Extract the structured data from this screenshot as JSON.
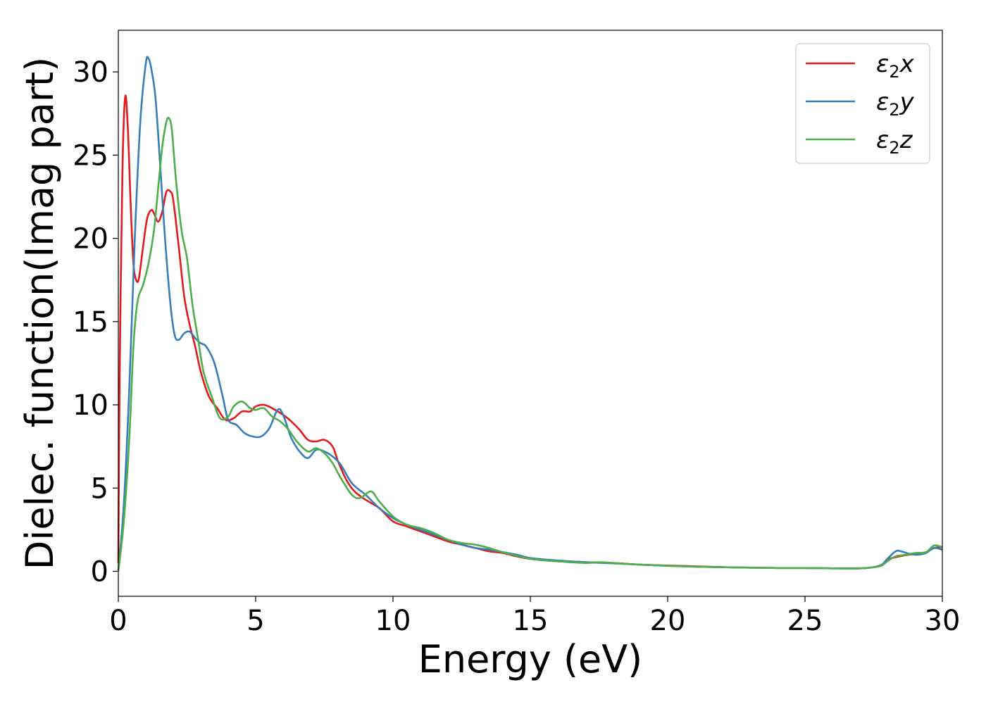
{
  "chart_data": {
    "type": "line",
    "title": "",
    "xlabel": "Energy (eV)",
    "ylabel": "Dielec. function(Imag part)",
    "xlim": [
      0,
      30
    ],
    "ylim": [
      -1.5,
      32.5
    ],
    "xticks": [
      0,
      5,
      10,
      15,
      20,
      25,
      30
    ],
    "yticks": [
      0,
      5,
      10,
      15,
      20,
      25,
      30
    ],
    "grid": false,
    "legend_position": "top-right",
    "series": [
      {
        "name": "ε2x",
        "legend": {
          "base": "ε",
          "sub": "2",
          "suffix": "x"
        },
        "color": "#e41a1c",
        "x": [
          0,
          0.05,
          0.15,
          0.25,
          0.35,
          0.45,
          0.55,
          0.65,
          0.75,
          0.9,
          1.05,
          1.2,
          1.3,
          1.45,
          1.6,
          1.75,
          1.9,
          2.0,
          2.2,
          2.4,
          2.6,
          2.8,
          3.0,
          3.3,
          3.6,
          3.9,
          4.2,
          4.5,
          4.8,
          5.0,
          5.3,
          5.6,
          6.0,
          6.3,
          6.6,
          6.9,
          7.2,
          7.5,
          7.8,
          8.0,
          8.3,
          8.6,
          9.0,
          9.5,
          10.0,
          10.5,
          11.0,
          11.5,
          12.0,
          12.5,
          13.0,
          13.5,
          14.0,
          14.5,
          15.0,
          16.0,
          17.0,
          18.0,
          19.0,
          20.0,
          21.0,
          22.0,
          23.0,
          24.0,
          25.0,
          26.0,
          27.0,
          27.5,
          27.8,
          28.0,
          28.3,
          28.6,
          29.0,
          29.4,
          29.7,
          30.0
        ],
        "y": [
          0.5,
          12,
          24,
          28.5,
          26.5,
          22,
          18.5,
          17.5,
          17.6,
          19.5,
          21.2,
          21.7,
          21.5,
          21.0,
          21.6,
          22.8,
          22.8,
          22.3,
          19.5,
          16.5,
          14.8,
          13.5,
          12.0,
          10.5,
          9.8,
          9.1,
          9.2,
          9.6,
          9.6,
          9.9,
          10.0,
          9.8,
          9.4,
          9.0,
          8.5,
          7.9,
          7.8,
          7.9,
          7.5,
          6.6,
          5.5,
          4.8,
          4.3,
          3.8,
          3.0,
          2.7,
          2.4,
          2.1,
          1.8,
          1.6,
          1.4,
          1.2,
          1.1,
          0.9,
          0.75,
          0.6,
          0.55,
          0.5,
          0.4,
          0.35,
          0.3,
          0.25,
          0.22,
          0.2,
          0.2,
          0.18,
          0.18,
          0.25,
          0.4,
          0.7,
          0.85,
          0.95,
          1.05,
          1.15,
          1.4,
          1.45
        ]
      },
      {
        "name": "ε2y",
        "legend": {
          "base": "ε",
          "sub": "2",
          "suffix": "y"
        },
        "color": "#377eb8",
        "x": [
          0,
          0.2,
          0.4,
          0.6,
          0.8,
          1.0,
          1.1,
          1.2,
          1.35,
          1.5,
          1.7,
          1.9,
          2.05,
          2.2,
          2.4,
          2.6,
          2.8,
          3.0,
          3.2,
          3.5,
          3.8,
          4.0,
          4.3,
          4.6,
          4.9,
          5.2,
          5.5,
          5.8,
          6.0,
          6.3,
          6.6,
          6.9,
          7.2,
          7.5,
          7.8,
          8.1,
          8.5,
          9.0,
          9.5,
          10.0,
          10.5,
          11.0,
          11.5,
          12.0,
          12.5,
          13.0,
          13.5,
          14.0,
          14.5,
          15.0,
          16.0,
          17.0,
          18.0,
          19.0,
          20.0,
          21.0,
          22.0,
          23.0,
          24.0,
          25.0,
          26.0,
          27.0,
          27.5,
          27.8,
          28.0,
          28.3,
          28.5,
          28.8,
          29.1,
          29.4,
          29.7,
          30.0
        ],
        "y": [
          0,
          4,
          11,
          20,
          27,
          30.5,
          30.8,
          30.2,
          28.5,
          25,
          20,
          16,
          14.2,
          13.9,
          14.3,
          14.4,
          14.0,
          13.7,
          13.5,
          12.5,
          10.5,
          9.1,
          8.8,
          8.3,
          8.1,
          8.1,
          8.6,
          9.7,
          9.4,
          8.0,
          7.2,
          6.8,
          7.3,
          7.2,
          6.9,
          6.4,
          5.3,
          4.6,
          3.8,
          3.2,
          2.8,
          2.5,
          2.2,
          1.9,
          1.6,
          1.4,
          1.3,
          1.15,
          1.0,
          0.8,
          0.65,
          0.55,
          0.48,
          0.4,
          0.33,
          0.28,
          0.25,
          0.22,
          0.2,
          0.2,
          0.18,
          0.18,
          0.25,
          0.4,
          0.75,
          1.2,
          1.2,
          1.05,
          1.0,
          1.1,
          1.4,
          1.3
        ]
      },
      {
        "name": "ε2z",
        "legend": {
          "base": "ε",
          "sub": "2",
          "suffix": "z"
        },
        "color": "#4daf4a",
        "x": [
          0,
          0.2,
          0.4,
          0.55,
          0.7,
          0.9,
          1.1,
          1.3,
          1.45,
          1.6,
          1.75,
          1.85,
          1.95,
          2.1,
          2.3,
          2.5,
          2.7,
          2.9,
          3.1,
          3.4,
          3.7,
          4.0,
          4.2,
          4.5,
          4.8,
          5.0,
          5.3,
          5.6,
          5.9,
          6.2,
          6.5,
          6.9,
          7.2,
          7.5,
          7.8,
          8.1,
          8.5,
          8.8,
          9.2,
          9.5,
          10.0,
          10.5,
          11.0,
          11.5,
          12.0,
          12.5,
          13.0,
          13.5,
          14.0,
          15.0,
          16.0,
          17.0,
          17.5,
          18.0,
          19.0,
          20.0,
          21.0,
          22.0,
          23.0,
          24.0,
          25.0,
          26.0,
          27.0,
          27.5,
          27.8,
          28.0,
          28.3,
          28.7,
          29.0,
          29.4,
          29.7,
          30.0
        ],
        "y": [
          0,
          3,
          8,
          13.5,
          16.2,
          17.2,
          18.5,
          20.5,
          23.0,
          25.5,
          27.0,
          27.2,
          26.5,
          23.5,
          20.5,
          18.8,
          16.0,
          14.0,
          12.0,
          10.5,
          9.2,
          9.3,
          9.9,
          10.2,
          9.8,
          9.7,
          9.8,
          9.3,
          9.0,
          8.5,
          7.8,
          7.2,
          7.4,
          7.1,
          6.5,
          5.6,
          4.6,
          4.4,
          4.8,
          4.2,
          3.3,
          2.8,
          2.6,
          2.3,
          1.9,
          1.7,
          1.6,
          1.4,
          1.15,
          0.75,
          0.6,
          0.5,
          0.55,
          0.5,
          0.4,
          0.33,
          0.28,
          0.25,
          0.22,
          0.2,
          0.2,
          0.18,
          0.18,
          0.25,
          0.35,
          0.6,
          0.9,
          1.0,
          1.1,
          1.15,
          1.55,
          1.45
        ]
      }
    ]
  }
}
